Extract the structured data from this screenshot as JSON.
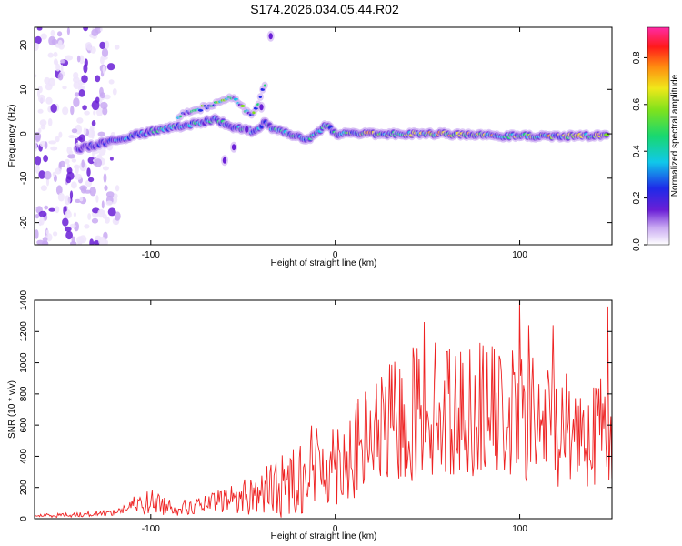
{
  "title": "S174.2026.034.05.44.R02",
  "chart_data": [
    {
      "type": "heatmap",
      "name": "spectrogram",
      "xlabel": "Height of straight line (km)",
      "ylabel": "Frequency (Hz)",
      "xlim": [
        -163,
        150
      ],
      "ylim": [
        -25,
        24
      ],
      "x_ticks": [
        -100,
        0,
        100
      ],
      "y_ticks": [
        -20,
        -10,
        0,
        10,
        20
      ],
      "y_tick_labels": [
        "-20",
        "-10",
        "0",
        "10",
        "20"
      ],
      "colorbar": {
        "label": "Normalized spectral amplitude",
        "range": [
          0,
          0.93
        ],
        "ticks": [
          0.0,
          0.2,
          0.4,
          0.6,
          0.8
        ],
        "tick_labels": [
          "0.0",
          "0.2",
          "0.4",
          "0.6",
          "0.8"
        ],
        "colormap": "rainbow (white-violet-blue-cyan-green-yellow-orange-red-magenta)"
      },
      "ridge": {
        "description": "frequency ridge vs height",
        "x": [
          -140,
          -120,
          -100,
          -80,
          -65,
          -55,
          -45,
          -38,
          -33,
          -25,
          -15,
          -5,
          0,
          10,
          30,
          60,
          90,
          120,
          148
        ],
        "y": [
          -3.5,
          -1.5,
          0.5,
          2.0,
          3.2,
          1.5,
          0.5,
          2.5,
          1.0,
          0.0,
          -1.5,
          2.0,
          0.0,
          0.0,
          0.0,
          0.0,
          -0.5,
          -0.5,
          -0.5
        ]
      },
      "upper_branch": {
        "description": "secondary rising branch",
        "x": [
          -85,
          -75,
          -65,
          -58,
          -50,
          -45,
          -40,
          -37
        ],
        "y": [
          4.0,
          5.5,
          7.0,
          8.5,
          6.0,
          4.0,
          9.0,
          11.5
        ]
      },
      "spurs": {
        "x": [
          -60,
          -55,
          -48,
          -40,
          -35
        ],
        "y": [
          -6.0,
          -3.0,
          1.0,
          6.0,
          22.0
        ]
      },
      "noise_region": {
        "description": "diffuse noise at low heights",
        "x_range": [
          -163,
          -118
        ],
        "y_range": [
          -25,
          24
        ]
      }
    },
    {
      "type": "line",
      "name": "snr",
      "xlabel": "Height of straight line (km)",
      "ylabel": "SNR (10 * v/v)",
      "xlim": [
        -163,
        150
      ],
      "ylim": [
        0,
        1400
      ],
      "x_ticks": [
        -100,
        0,
        100
      ],
      "y_ticks": [
        0,
        200,
        400,
        600,
        800,
        1000,
        1200,
        1400
      ],
      "series": [
        {
          "name": "SNR",
          "color": "#ee2222",
          "envelope": {
            "x": [
              -163,
              -140,
              -120,
              -110,
              -100,
              -90,
              -80,
              -70,
              -60,
              -50,
              -40,
              -30,
              -20,
              -15,
              -10,
              0,
              10,
              20,
              30,
              40,
              50,
              60,
              70,
              80,
              90,
              100,
              110,
              120,
              130,
              140,
              150
            ],
            "mean": [
              20,
              25,
              40,
              80,
              110,
              80,
              70,
              90,
              120,
              140,
              170,
              200,
              280,
              320,
              340,
              380,
              420,
              520,
              600,
              650,
              720,
              700,
              680,
              720,
              660,
              640,
              620,
              600,
              580,
              560,
              600
            ],
            "amp": [
              12,
              15,
              20,
              60,
              80,
              60,
              50,
              60,
              80,
              120,
              160,
              200,
              260,
              300,
              280,
              300,
              320,
              360,
              400,
              440,
              460,
              440,
              420,
              440,
              420,
              440,
              420,
              400,
              380,
              360,
              400
            ]
          },
          "peaks": [
            {
              "x": 100,
              "y": 1400
            },
            {
              "x": 148,
              "y": 1360
            },
            {
              "x": 48,
              "y": 1260
            },
            {
              "x": 105,
              "y": 1240
            },
            {
              "x": 118,
              "y": 1240
            }
          ]
        }
      ]
    }
  ]
}
